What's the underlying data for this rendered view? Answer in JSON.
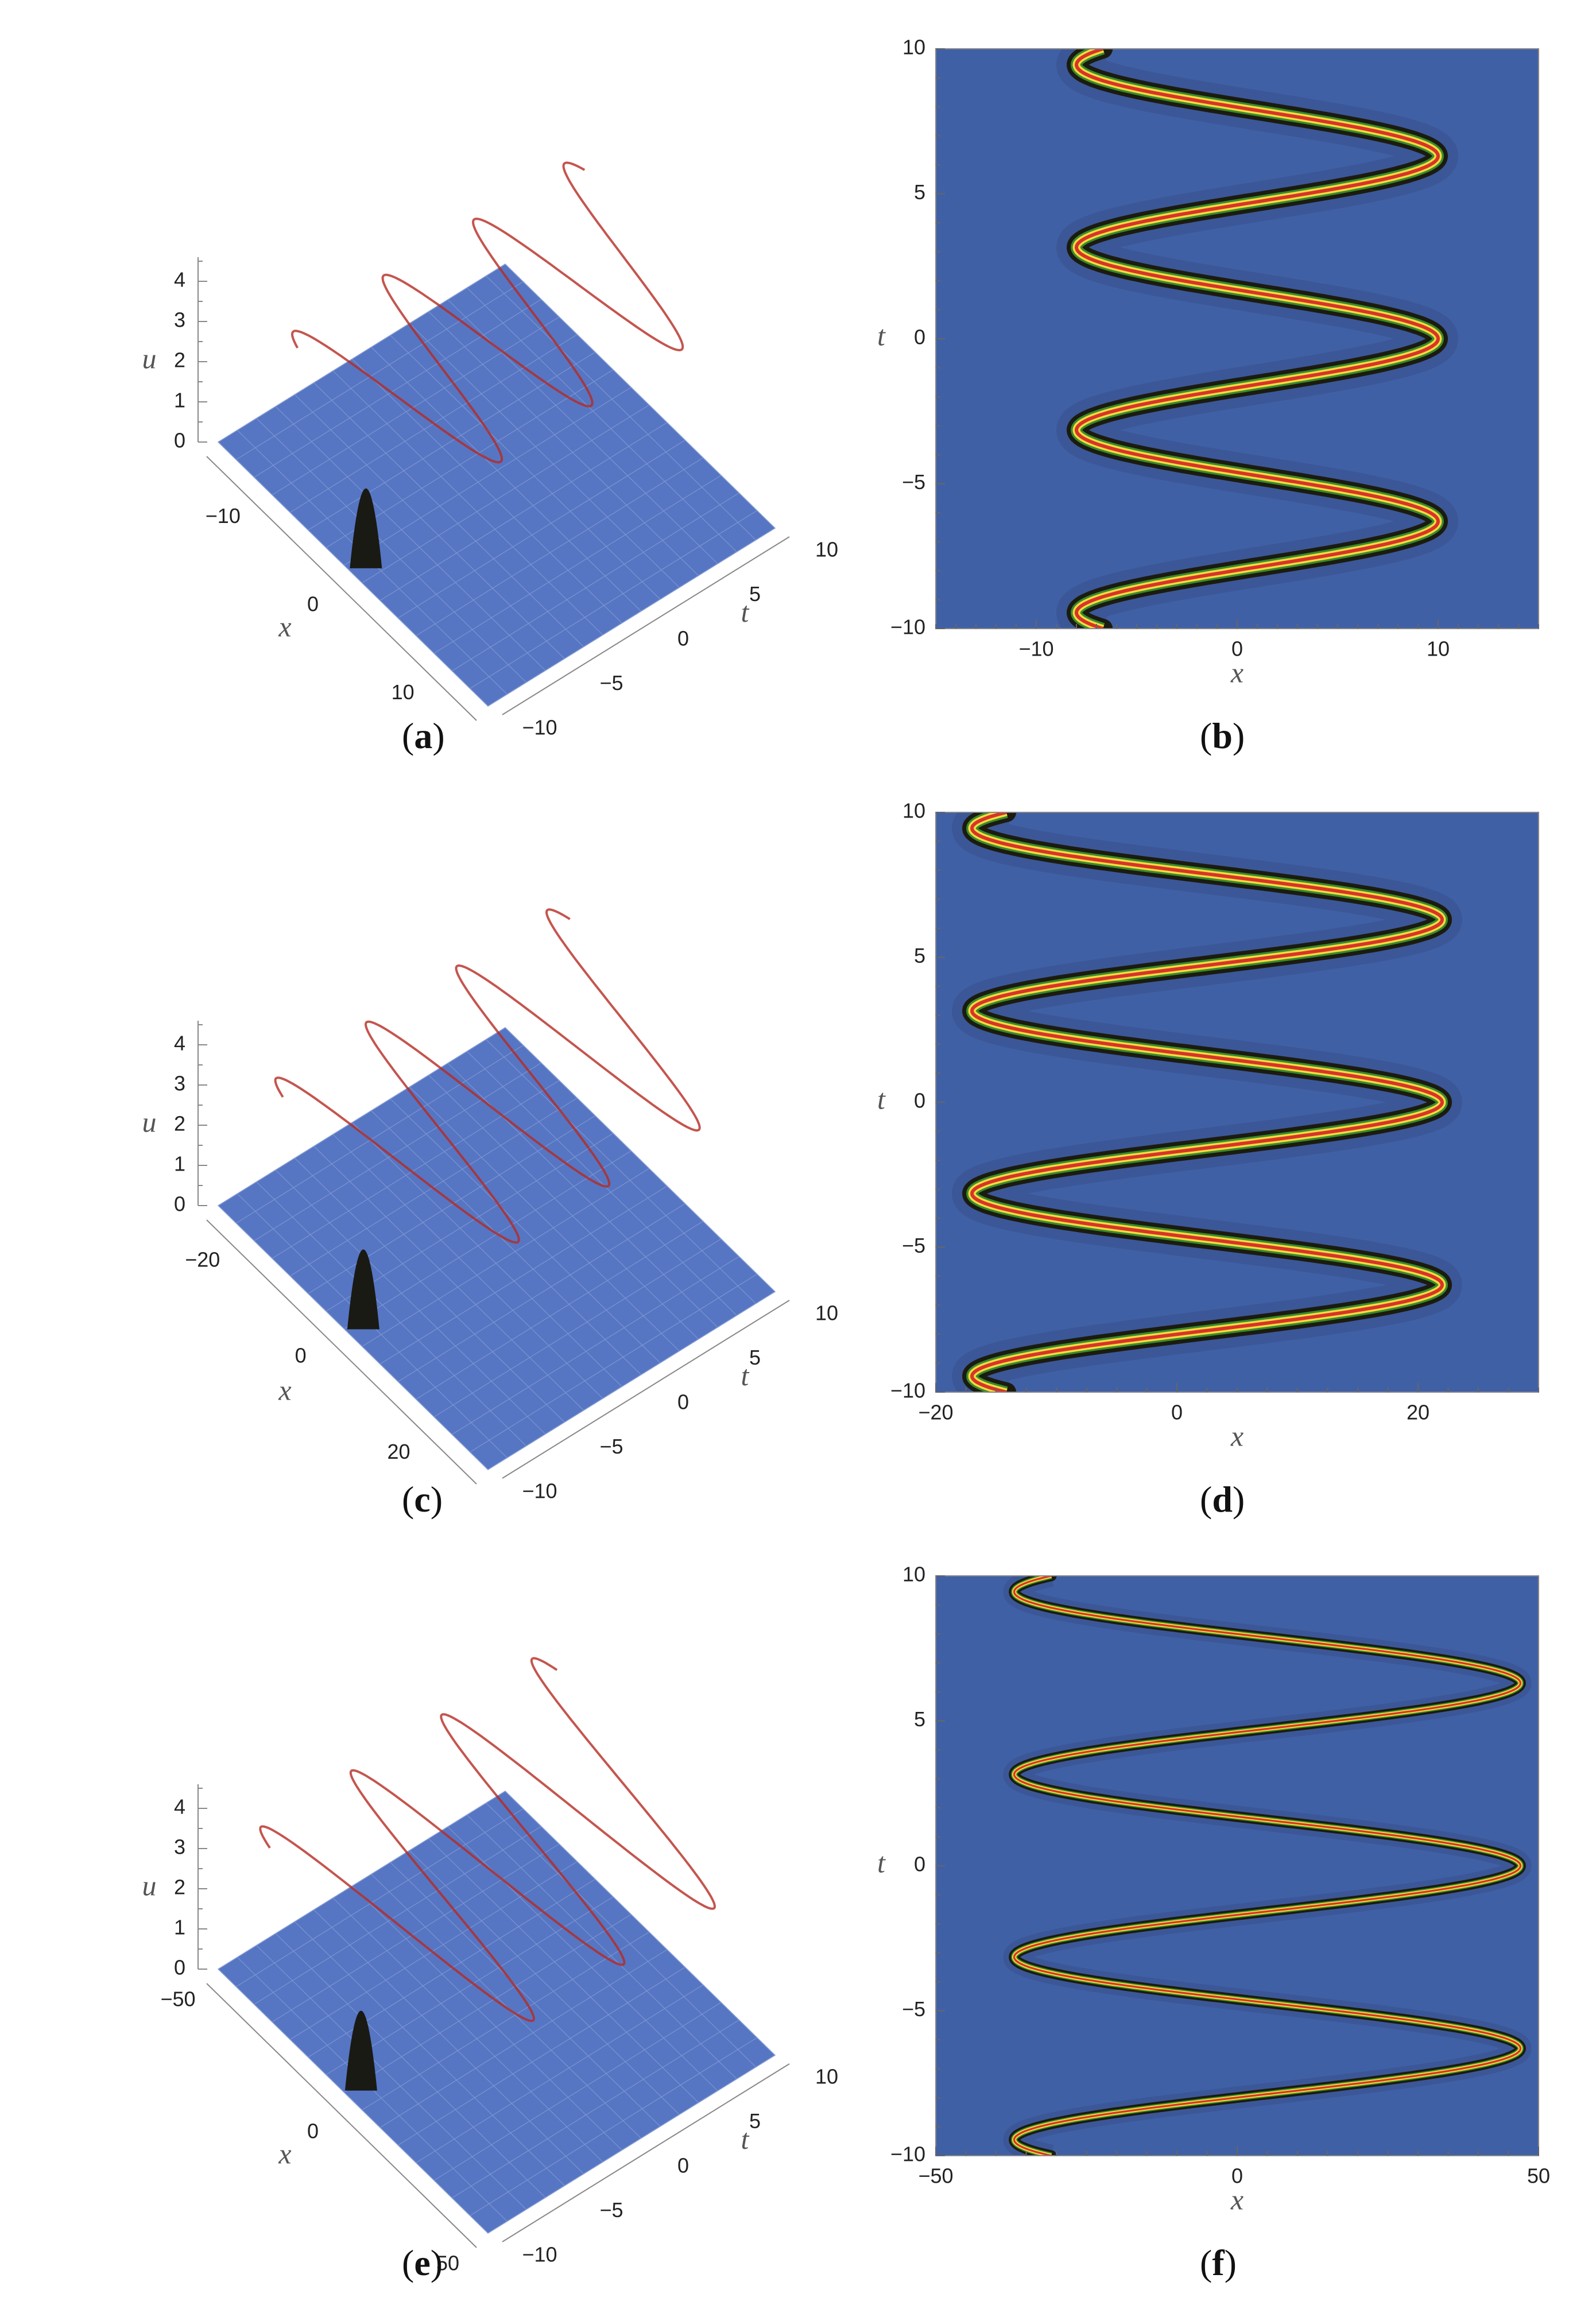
{
  "figure": {
    "panels": [
      {
        "id": "a",
        "caption_letter": "a",
        "kind": "surface3d"
      },
      {
        "id": "b",
        "caption_letter": "b",
        "kind": "density"
      },
      {
        "id": "c",
        "caption_letter": "c",
        "kind": "surface3d"
      },
      {
        "id": "d",
        "caption_letter": "d",
        "kind": "density"
      },
      {
        "id": "e",
        "caption_letter": "e",
        "kind": "surface3d"
      },
      {
        "id": "f",
        "caption_letter": "f",
        "kind": "density"
      }
    ]
  },
  "chart_data": [
    {
      "panel": "a",
      "type": "surface3d",
      "xlabel": "x",
      "ylabel": "t",
      "zlabel": "u",
      "x_ticks": [
        "−10",
        "0",
        "10"
      ],
      "x_tick_values": [
        -10,
        0,
        10
      ],
      "t_ticks": [
        "−10",
        "−5",
        "0",
        "5",
        "10"
      ],
      "t_tick_values": [
        -10,
        -5,
        0,
        5,
        10
      ],
      "u_ticks": [
        "0",
        "1",
        "2",
        "3",
        "4"
      ],
      "u_tick_values": [
        0,
        1,
        2,
        3,
        4
      ],
      "xlim": [
        -15,
        15
      ],
      "tlim": [
        -10,
        10
      ],
      "ulim": [
        0,
        4.5
      ],
      "surface": {
        "peak_amplitude": 4.5,
        "oscillation_amplitude_x": 9,
        "period_t": 6.3
      }
    },
    {
      "panel": "b",
      "type": "heatmap",
      "xlabel": "x",
      "ylabel": "t",
      "x_ticks": [
        "−10",
        "0",
        "10"
      ],
      "x_tick_values": [
        -10,
        0,
        10
      ],
      "y_ticks": [
        "−10",
        "−5",
        "0",
        "5",
        "10"
      ],
      "y_tick_values": [
        -10,
        -5,
        0,
        5,
        10
      ],
      "xlim": [
        -15,
        15
      ],
      "ylim": [
        -10,
        10
      ],
      "ridge": {
        "center": 1,
        "amplitude": 9,
        "period": 6.3,
        "phase_at_t0": 0.25,
        "turning_points": [
          [
            10,
            8
          ],
          [
            -8,
            4.8
          ],
          [
            10,
            1.6
          ],
          [
            -8,
            -1.5
          ],
          [
            10,
            -4.7
          ],
          [
            -8,
            -7.9
          ]
        ]
      }
    },
    {
      "panel": "c",
      "type": "surface3d",
      "xlabel": "x",
      "ylabel": "t",
      "zlabel": "u",
      "x_ticks": [
        "−20",
        "0",
        "20"
      ],
      "x_tick_values": [
        -20,
        0,
        20
      ],
      "t_ticks": [
        "−10",
        "−5",
        "0",
        "5",
        "10"
      ],
      "t_tick_values": [
        -10,
        -5,
        0,
        5,
        10
      ],
      "u_ticks": [
        "0",
        "1",
        "2",
        "3",
        "4"
      ],
      "u_tick_values": [
        0,
        1,
        2,
        3,
        4
      ],
      "xlim": [
        -25,
        30
      ],
      "tlim": [
        -10,
        10
      ],
      "ulim": [
        0,
        4.5
      ],
      "surface": {
        "peak_amplitude": 4.5,
        "oscillation_amplitude_x": 20,
        "period_t": 6.3
      }
    },
    {
      "panel": "d",
      "type": "heatmap",
      "xlabel": "x",
      "ylabel": "t",
      "x_ticks": [
        "−20",
        "0",
        "20"
      ],
      "x_tick_values": [
        -20,
        0,
        20
      ],
      "y_ticks": [
        "−10",
        "−5",
        "0",
        "5",
        "10"
      ],
      "y_tick_values": [
        -10,
        -5,
        0,
        5,
        10
      ],
      "xlim": [
        -20,
        30
      ],
      "ylim": [
        -10,
        10
      ],
      "ridge": {
        "center": 2.5,
        "amplitude": 19.5,
        "period": 6.3,
        "phase_at_t0": 0.25,
        "turning_points": [
          [
            22,
            8
          ],
          [
            -17,
            4.8
          ],
          [
            22,
            1.6
          ],
          [
            -17,
            -1.5
          ],
          [
            22,
            -4.7
          ],
          [
            -17,
            -7.9
          ]
        ]
      }
    },
    {
      "panel": "e",
      "type": "surface3d",
      "xlabel": "x",
      "ylabel": "t",
      "zlabel": "u",
      "x_ticks": [
        "−50",
        "0",
        "50"
      ],
      "x_tick_values": [
        -50,
        0,
        50
      ],
      "t_ticks": [
        "−10",
        "−5",
        "0",
        "5",
        "10"
      ],
      "t_tick_values": [
        -10,
        -5,
        0,
        5,
        10
      ],
      "u_ticks": [
        "0",
        "1",
        "2",
        "3",
        "4"
      ],
      "u_tick_values": [
        0,
        1,
        2,
        3,
        4
      ],
      "xlim": [
        -50,
        50
      ],
      "tlim": [
        -10,
        10
      ],
      "ulim": [
        0,
        4.5
      ],
      "surface": {
        "peak_amplitude": 4.5,
        "oscillation_amplitude_x": 42,
        "period_t": 6.3
      }
    },
    {
      "panel": "f",
      "type": "heatmap",
      "xlabel": "x",
      "ylabel": "t",
      "x_ticks": [
        "−50",
        "0",
        "50"
      ],
      "x_tick_values": [
        -50,
        0,
        50
      ],
      "y_ticks": [
        "−10",
        "−5",
        "0",
        "5",
        "10"
      ],
      "y_tick_values": [
        -10,
        -5,
        0,
        5,
        10
      ],
      "xlim": [
        -50,
        50
      ],
      "ylim": [
        -10,
        10
      ],
      "ridge": {
        "center": 5,
        "amplitude": 42,
        "period": 6.3,
        "phase_at_t0": 0.25,
        "turning_points": [
          [
            47,
            8
          ],
          [
            -37,
            4.8
          ],
          [
            47,
            1.6
          ],
          [
            -37,
            -1.5
          ],
          [
            47,
            -4.7
          ],
          [
            -37,
            -7.9
          ]
        ]
      }
    }
  ],
  "colors": {
    "background_blue": "#4060a6",
    "plane_blue": "#5676c4",
    "ridge_dark": "#1b1b10",
    "ridge_red": "#d8342a",
    "ridge_yellow": "#f2dc3c",
    "ridge_green": "#3a8a2e"
  }
}
